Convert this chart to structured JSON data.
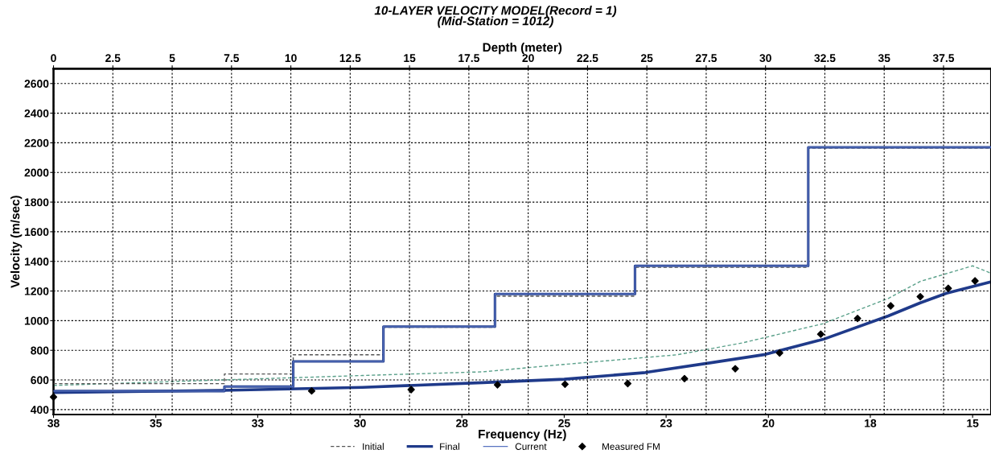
{
  "chart_data": {
    "type": "line",
    "title": "10-LAYER VELOCITY MODEL(Record = 1)",
    "subtitle": "(Mid-Station = 1012)",
    "xlabel": "Frequency (Hz)",
    "x2label": "Depth (meter)",
    "ylabel": "Velocity (m/sec)",
    "xlim": [
      38,
      14.54
    ],
    "xticks": [
      {
        "value": 38,
        "label": "38"
      },
      {
        "value": 35.44,
        "label": "35"
      },
      {
        "value": 32.89,
        "label": "33"
      },
      {
        "value": 30.33,
        "label": "30"
      },
      {
        "value": 27.78,
        "label": "28"
      },
      {
        "value": 25.22,
        "label": "25"
      },
      {
        "value": 22.67,
        "label": "23"
      },
      {
        "value": 20.11,
        "label": "20"
      },
      {
        "value": 17.56,
        "label": "18"
      },
      {
        "value": 15,
        "label": "15"
      }
    ],
    "x2lim": [
      0,
      39.5
    ],
    "x2ticks": [
      0,
      2.5,
      5,
      7.5,
      10,
      12.5,
      15,
      17.5,
      20,
      22.5,
      25,
      27.5,
      30,
      32.5,
      35,
      37.5
    ],
    "ylim": [
      367,
      2700
    ],
    "yticks": [
      400,
      600,
      800,
      1000,
      1200,
      1400,
      1600,
      1800,
      2000,
      2200,
      2400,
      2600
    ],
    "grid": true,
    "legend": "bottom",
    "series": [
      {
        "name": "Initial",
        "type": "step",
        "axis": "x2",
        "color": "#555555",
        "line_style": "dashed",
        "x": [
          0,
          7.2,
          10.1,
          13.9,
          18.6,
          24.5,
          31.8,
          39.5
        ],
        "values": [
          575,
          640,
          770,
          955,
          1165,
          1360,
          2165,
          2165
        ]
      },
      {
        "color": "#5aa08a",
        "line_style": "dashed",
        "x": [
          38,
          33.77,
          30.27,
          27.26,
          25.22,
          22.39,
          20.76,
          18.74,
          17.11,
          16.31,
          15.0,
          14.54
        ],
        "values": [
          563,
          600,
          630,
          655,
          705,
          770,
          850,
          980,
          1150,
          1265,
          1370,
          1320
        ]
      },
      {
        "name": "Final",
        "type": "step",
        "axis": "x2",
        "color": "#1f3a8a",
        "line_style": "solid",
        "x": [
          0,
          7.2,
          10.1,
          13.9,
          18.6,
          24.5,
          31.8,
          39.5
        ],
        "values": [
          525,
          555,
          725,
          960,
          1180,
          1370,
          2170,
          2170
        ]
      },
      {
        "color": "#1f3a8a",
        "line_style": "solid",
        "x": [
          38,
          33.77,
          30.27,
          27.26,
          25.22,
          23.19,
          21.58,
          20.19,
          18.74,
          17.11,
          16.31,
          15.65,
          14.54
        ],
        "values": [
          515,
          530,
          550,
          582,
          605,
          650,
          715,
          772,
          874,
          1032,
          1120,
          1185,
          1262
        ]
      },
      {
        "name": "Current",
        "type": "step",
        "axis": "x2",
        "color": "#5a74c0",
        "line_style": "solid",
        "x": [
          0,
          7.2,
          10.1,
          13.9,
          18.6,
          24.5,
          31.8,
          39.5
        ],
        "values": [
          525,
          555,
          725,
          960,
          1180,
          1370,
          2170,
          2170
        ]
      },
      {
        "name": "Measured FM",
        "type": "scatter",
        "color": "#000000",
        "marker": "diamond",
        "x": [
          38,
          31.54,
          29.05,
          26.89,
          25.2,
          23.63,
          22.21,
          20.94,
          19.83,
          18.8,
          17.88,
          17.05,
          16.31,
          15.61,
          14.94
        ],
        "values": [
          485,
          526,
          535,
          567,
          571,
          576,
          609,
          676,
          782,
          909,
          1015,
          1100,
          1162,
          1218,
          1268
        ]
      }
    ]
  }
}
